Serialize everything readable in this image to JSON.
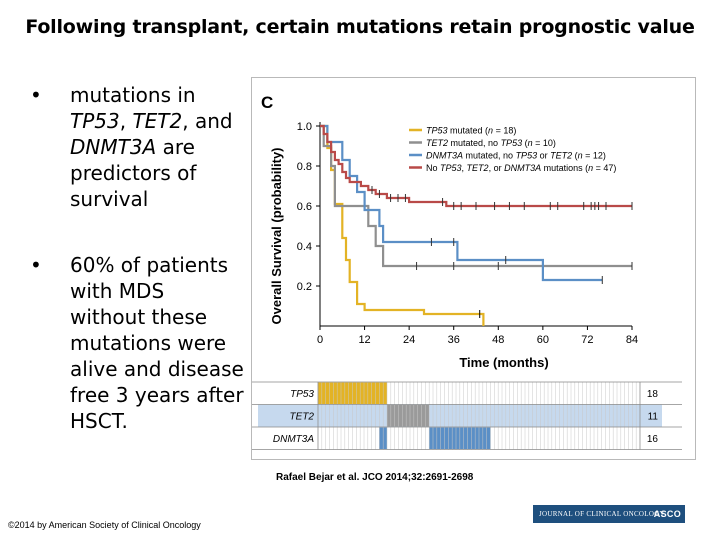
{
  "slide": {
    "title": "Following transplant, certain mutations retain prognostic value",
    "bullets": [
      {
        "parts": [
          {
            "text": "mutations in "
          },
          {
            "text": "TP53",
            "italic": true
          },
          {
            "text": ", "
          },
          {
            "text": "TET2",
            "italic": true
          },
          {
            "text": ", and "
          },
          {
            "text": "DNMT3A",
            "italic": true
          },
          {
            "text": " are predictors of survival"
          }
        ]
      },
      {
        "parts": [
          {
            "text": "60% of patients with MDS without these mutations were alive and disease free 3 years after HSCT."
          }
        ]
      }
    ],
    "bullet_glyph": "•",
    "citation": "Rafael Bejar et al. JCO 2014;32:2691-2698",
    "copyright": "©2014 by American Society of Clinical Oncology",
    "journal_logo": {
      "name": "JOURNAL OF CLINICAL ONCOLOGY",
      "org": "ASCO"
    }
  },
  "chart_data": {
    "type": "line",
    "panel_label": "C",
    "xlabel": "Time (months)",
    "ylabel": "Overall Survival (probability)",
    "xlim": [
      0,
      84
    ],
    "ylim": [
      0,
      1
    ],
    "xticks": [
      0,
      12,
      24,
      36,
      48,
      60,
      72,
      84
    ],
    "yticks": [
      0.2,
      0.4,
      0.6,
      0.8,
      1.0
    ],
    "ytick_labels": [
      "0.2",
      "0.4",
      "0.6",
      "0.8",
      "1.0"
    ],
    "grid": false,
    "legend_position": "top-right",
    "series": [
      {
        "name": "TP53 mutated (n = 18)",
        "color": "#e3b325",
        "legend_parts": [
          {
            "text": "TP53",
            "italic": true
          },
          {
            "text": " mutated ("
          },
          {
            "text": "n",
            "italic": true
          },
          {
            "text": " = 18)"
          }
        ],
        "points": [
          [
            0,
            1.0
          ],
          [
            2,
            1.0
          ],
          [
            2,
            0.89
          ],
          [
            3,
            0.89
          ],
          [
            3,
            0.78
          ],
          [
            4,
            0.78
          ],
          [
            4,
            0.61
          ],
          [
            6,
            0.61
          ],
          [
            6,
            0.44
          ],
          [
            7,
            0.44
          ],
          [
            7,
            0.33
          ],
          [
            8,
            0.33
          ],
          [
            8,
            0.22
          ],
          [
            10,
            0.22
          ],
          [
            10,
            0.11
          ],
          [
            12,
            0.11
          ],
          [
            12,
            0.08
          ],
          [
            28,
            0.08
          ],
          [
            28,
            0.06
          ],
          [
            44,
            0.06
          ],
          [
            44,
            0.0
          ]
        ],
        "censor_x": [
          43
        ]
      },
      {
        "name": "TET2 mutated, no TP53 (n = 10)",
        "color": "#8f8f8f",
        "legend_parts": [
          {
            "text": "TET2",
            "italic": true
          },
          {
            "text": " mutated, no "
          },
          {
            "text": "TP53",
            "italic": true
          },
          {
            "text": " ("
          },
          {
            "text": "n",
            "italic": true
          },
          {
            "text": " = 10)"
          }
        ],
        "points": [
          [
            0,
            1.0
          ],
          [
            1,
            1.0
          ],
          [
            1,
            0.9
          ],
          [
            3,
            0.9
          ],
          [
            3,
            0.8
          ],
          [
            4,
            0.8
          ],
          [
            4,
            0.6
          ],
          [
            13,
            0.6
          ],
          [
            13,
            0.5
          ],
          [
            15,
            0.5
          ],
          [
            15,
            0.4
          ],
          [
            17,
            0.4
          ],
          [
            17,
            0.3
          ],
          [
            84,
            0.3
          ]
        ],
        "censor_x": [
          26,
          36,
          48,
          84
        ]
      },
      {
        "name": "DNMT3A mutated, no TP53 or TET2 (n = 12)",
        "color": "#5b8fc6",
        "legend_parts": [
          {
            "text": "DNMT3A",
            "italic": true
          },
          {
            "text": " mutated, no "
          },
          {
            "text": "TP53",
            "italic": true
          },
          {
            "text": " or "
          },
          {
            "text": "TET2",
            "italic": true
          },
          {
            "text": " ("
          },
          {
            "text": "n",
            "italic": true
          },
          {
            "text": " = 12)"
          }
        ],
        "points": [
          [
            0,
            1.0
          ],
          [
            2,
            1.0
          ],
          [
            2,
            0.92
          ],
          [
            6,
            0.92
          ],
          [
            6,
            0.83
          ],
          [
            8,
            0.83
          ],
          [
            8,
            0.75
          ],
          [
            10,
            0.75
          ],
          [
            10,
            0.67
          ],
          [
            12,
            0.67
          ],
          [
            12,
            0.58
          ],
          [
            16,
            0.58
          ],
          [
            16,
            0.5
          ],
          [
            17,
            0.5
          ],
          [
            17,
            0.42
          ],
          [
            37,
            0.42
          ],
          [
            37,
            0.33
          ],
          [
            60,
            0.33
          ],
          [
            60,
            0.23
          ],
          [
            76,
            0.23
          ]
        ],
        "censor_x": [
          30,
          36,
          50,
          76
        ]
      },
      {
        "name": "No TP53, TET2, or DNMT3A mutations (n = 47)",
        "color": "#b94a48",
        "legend_parts": [
          {
            "text": "No "
          },
          {
            "text": "TP53",
            "italic": true
          },
          {
            "text": ", "
          },
          {
            "text": "TET2",
            "italic": true
          },
          {
            "text": ", or "
          },
          {
            "text": "DNMT3A",
            "italic": true
          },
          {
            "text": " mutations ("
          },
          {
            "text": "n",
            "italic": true
          },
          {
            "text": " = 47)"
          }
        ],
        "points": [
          [
            0,
            1.0
          ],
          [
            1,
            1.0
          ],
          [
            1,
            0.96
          ],
          [
            2,
            0.96
          ],
          [
            2,
            0.92
          ],
          [
            3,
            0.92
          ],
          [
            3,
            0.87
          ],
          [
            4,
            0.87
          ],
          [
            4,
            0.83
          ],
          [
            5,
            0.83
          ],
          [
            5,
            0.81
          ],
          [
            6,
            0.81
          ],
          [
            6,
            0.77
          ],
          [
            7,
            0.77
          ],
          [
            7,
            0.74
          ],
          [
            8,
            0.74
          ],
          [
            8,
            0.72
          ],
          [
            11,
            0.72
          ],
          [
            11,
            0.7
          ],
          [
            13,
            0.7
          ],
          [
            13,
            0.68
          ],
          [
            15,
            0.68
          ],
          [
            15,
            0.66
          ],
          [
            18,
            0.66
          ],
          [
            18,
            0.64
          ],
          [
            24,
            0.64
          ],
          [
            24,
            0.62
          ],
          [
            34,
            0.62
          ],
          [
            34,
            0.6
          ],
          [
            84,
            0.6
          ]
        ],
        "censor_x": [
          14,
          16,
          19,
          21,
          23,
          33,
          36,
          38,
          42,
          47,
          51,
          55,
          62,
          64,
          71,
          73,
          74,
          75,
          77,
          84
        ]
      }
    ],
    "mutation_table": {
      "xlim": [
        0,
        84
      ],
      "rows": [
        {
          "label": "TP53",
          "count": "18",
          "color": "#e3b325",
          "start": 1,
          "end": 18
        },
        {
          "label": "TET2",
          "count": "11",
          "color": "#9a9a9a",
          "start": 19,
          "end": 29,
          "bg": "#c6d9ee"
        },
        {
          "label": "DNMT3A",
          "count": "16",
          "color": "#5b8fc6",
          "segments": [
            [
              17,
              18
            ],
            [
              30,
              45
            ]
          ]
        }
      ]
    }
  }
}
